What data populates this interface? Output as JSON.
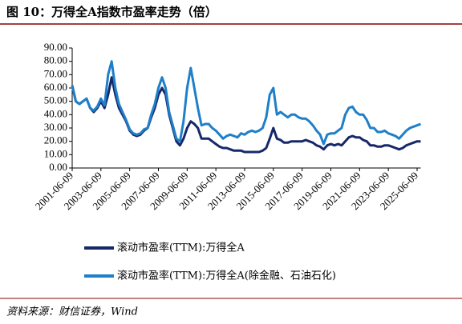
{
  "title": "图 10：万得全A指数市盈率走势（倍）",
  "source": "资料来源：财信证券，Wind",
  "chart_data": {
    "type": "line",
    "x": [
      "2001-06-09",
      "2001-09-09",
      "2001-12-09",
      "2002-03-09",
      "2002-06-09",
      "2002-09-09",
      "2002-12-09",
      "2003-03-09",
      "2003-06-09",
      "2003-09-09",
      "2003-12-09",
      "2004-03-09",
      "2004-06-09",
      "2004-09-09",
      "2004-12-09",
      "2005-03-09",
      "2005-06-09",
      "2005-09-09",
      "2005-12-09",
      "2006-03-09",
      "2006-06-09",
      "2006-09-09",
      "2006-12-09",
      "2007-03-09",
      "2007-06-09",
      "2007-09-09",
      "2007-12-09",
      "2008-03-09",
      "2008-06-09",
      "2008-09-09",
      "2008-12-09",
      "2009-03-09",
      "2009-06-09",
      "2009-09-09",
      "2009-12-09",
      "2010-03-09",
      "2010-06-09",
      "2010-09-09",
      "2010-12-09",
      "2011-03-09",
      "2011-06-09",
      "2011-09-09",
      "2011-12-09",
      "2012-03-09",
      "2012-06-09",
      "2012-09-09",
      "2012-12-09",
      "2013-03-09",
      "2013-06-09",
      "2013-09-09",
      "2013-12-09",
      "2014-03-09",
      "2014-06-09",
      "2014-09-09",
      "2014-12-09",
      "2015-03-09",
      "2015-06-09",
      "2015-09-09",
      "2015-12-09",
      "2016-03-09",
      "2016-06-09",
      "2016-09-09",
      "2016-12-09",
      "2017-03-09",
      "2017-06-09",
      "2017-09-09",
      "2017-12-09",
      "2018-03-09",
      "2018-06-09",
      "2018-09-09",
      "2018-12-09",
      "2019-03-09",
      "2019-06-09",
      "2019-09-09",
      "2019-12-09",
      "2020-03-09",
      "2020-06-09",
      "2020-09-09",
      "2020-12-09",
      "2021-03-09",
      "2021-06-09",
      "2021-09-09",
      "2021-12-09",
      "2022-03-09",
      "2022-06-09",
      "2022-09-09",
      "2022-12-09",
      "2023-03-09",
      "2023-06-09",
      "2023-09-09",
      "2023-12-09",
      "2024-03-09",
      "2024-06-09",
      "2024-09-09",
      "2024-12-09",
      "2025-03-09",
      "2025-06-09",
      "2025-09-09"
    ],
    "series": [
      {
        "name": "滚动市盈率(TTM):万得全A",
        "color": "#17286a",
        "values": [
          62,
          50,
          48,
          50,
          52,
          45,
          42,
          45,
          50,
          45,
          55,
          68,
          55,
          45,
          40,
          35,
          28,
          25,
          24,
          25,
          28,
          30,
          38,
          45,
          55,
          60,
          55,
          40,
          30,
          20,
          17,
          22,
          30,
          35,
          33,
          30,
          22,
          22,
          22,
          20,
          18,
          16,
          15,
          15,
          14,
          13,
          13,
          13,
          12,
          12,
          12,
          12,
          12,
          13,
          15,
          22,
          30,
          22,
          21,
          19,
          19,
          20,
          20,
          20,
          20,
          21,
          20,
          19,
          17,
          16,
          14,
          17,
          18,
          17,
          18,
          17,
          20,
          23,
          24,
          23,
          23,
          21,
          20,
          17,
          17,
          16,
          16,
          17,
          17,
          16,
          15,
          14,
          15,
          17,
          18,
          19,
          20,
          20
        ]
      },
      {
        "name": "滚动市盈率(TTM):万得全A(除金融、石油石化)",
        "color": "#1f7fc8",
        "values": [
          62,
          50,
          48,
          50,
          52,
          45,
          43,
          46,
          52,
          47,
          70,
          80,
          60,
          48,
          42,
          36,
          29,
          26,
          25,
          26,
          29,
          30,
          40,
          48,
          60,
          68,
          60,
          42,
          32,
          22,
          20,
          35,
          60,
          75,
          60,
          45,
          32,
          33,
          33,
          30,
          28,
          25,
          22,
          24,
          25,
          24,
          23,
          26,
          25,
          27,
          28,
          27,
          28,
          30,
          38,
          55,
          60,
          40,
          42,
          40,
          38,
          40,
          40,
          38,
          37,
          37,
          35,
          32,
          28,
          25,
          18,
          25,
          26,
          26,
          28,
          30,
          40,
          45,
          46,
          42,
          40,
          40,
          36,
          30,
          30,
          27,
          27,
          28,
          26,
          25,
          24,
          22,
          25,
          28,
          30,
          31,
          32,
          33
        ]
      }
    ],
    "xlim": [
      "2001-06-09",
      "2025-09-09"
    ],
    "xticks": [
      "2001-06-09",
      "2003-06-09",
      "2005-06-09",
      "2007-06-09",
      "2009-06-09",
      "2011-06-09",
      "2013-06-09",
      "2015-06-09",
      "2017-06-09",
      "2019-06-09",
      "2021-06-09",
      "2023-06-09",
      "2025-06-09"
    ],
    "ylim": [
      0,
      90
    ],
    "yticks": [
      {
        "value": 0,
        "label": "0.00"
      },
      {
        "value": 10,
        "label": "10.00"
      },
      {
        "value": 20,
        "label": "20.00"
      },
      {
        "value": 30,
        "label": "30.00"
      },
      {
        "value": 40,
        "label": "40.00"
      },
      {
        "value": 50,
        "label": "50.00"
      },
      {
        "value": 60,
        "label": "60.00"
      },
      {
        "value": 70,
        "label": "70.00"
      },
      {
        "value": 80,
        "label": "80.00"
      },
      {
        "value": 90,
        "label": "90.00"
      }
    ]
  }
}
